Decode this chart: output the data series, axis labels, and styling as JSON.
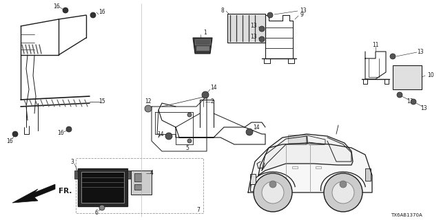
{
  "background_color": "#ffffff",
  "line_color": "#1a1a1a",
  "text_color": "#1a1a1a",
  "figsize": [
    6.4,
    3.2
  ],
  "dpi": 100,
  "diagram_id": "TX6AB1370A",
  "font_size": 5.5,
  "font_size_id": 5.0
}
